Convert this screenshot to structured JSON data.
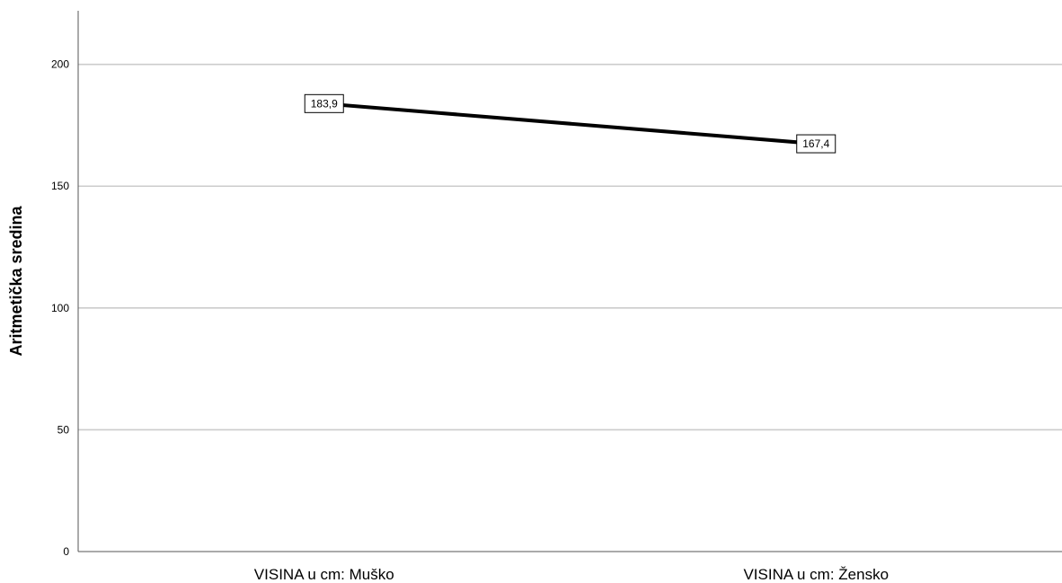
{
  "chart_data": {
    "type": "line",
    "categories": [
      "VISINA u cm: Muško",
      "VISINA u cm: Žensko"
    ],
    "series": [
      {
        "values": [
          183.9,
          167.4
        ],
        "labels": [
          "183,9",
          "167,4"
        ],
        "color": "#000000"
      }
    ],
    "xlabel": "",
    "ylabel": "Aritmetička sredina",
    "ylim": [
      0,
      222
    ],
    "yticks": [
      0,
      50,
      100,
      150,
      200
    ],
    "grid": true,
    "gridColor": "#cccccc"
  }
}
